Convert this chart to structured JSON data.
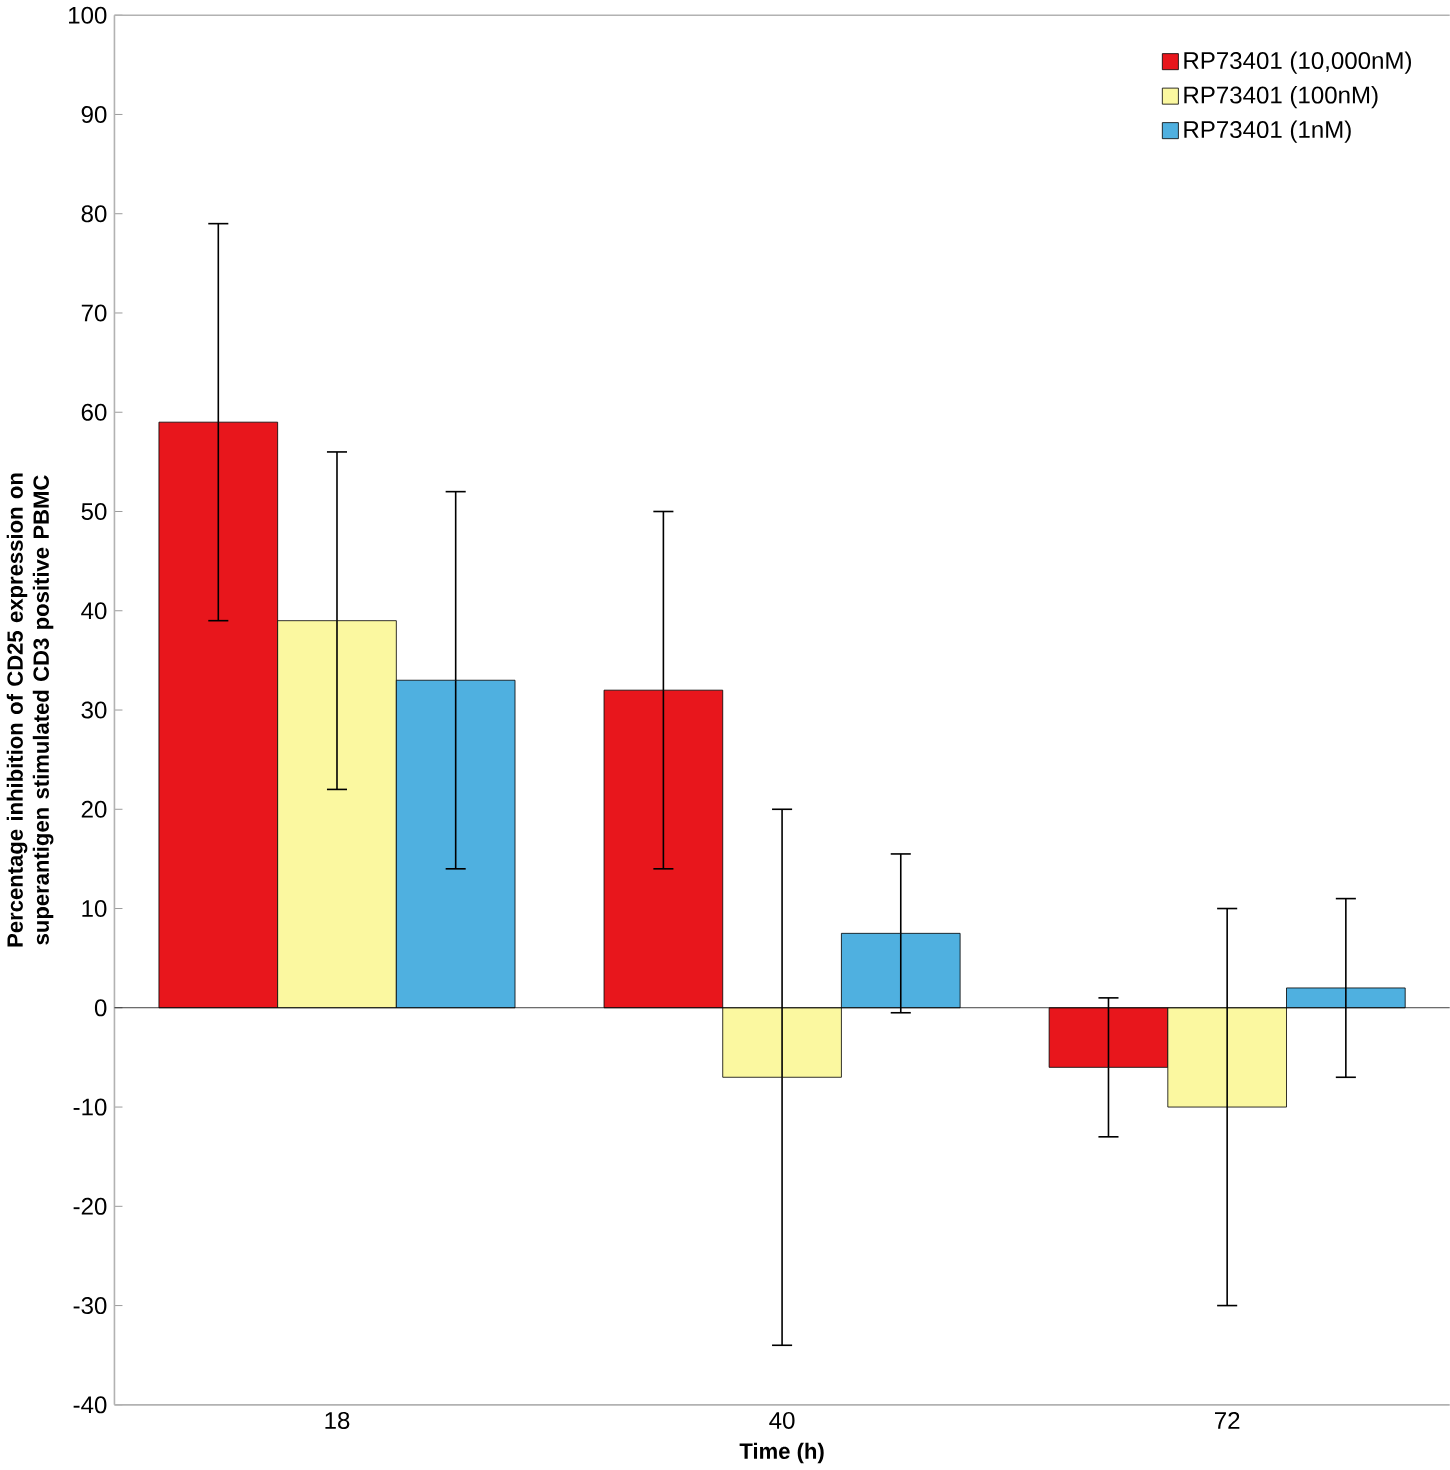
{
  "chart_data": {
    "type": "bar",
    "xlabel": "Time (h)",
    "ylabel": "Percentage inhibition of CD25 expression on superantigen stimulated CD3 positive PBMC",
    "categories": [
      "18",
      "40",
      "72"
    ],
    "series": [
      {
        "name": "RP73401 (10,000nM)",
        "color": "#e8161c",
        "values": [
          59,
          32,
          -6
        ],
        "errors": [
          20,
          18,
          7
        ]
      },
      {
        "name": "RP73401 (100nM)",
        "color": "#fbf8a0",
        "values": [
          39,
          -7,
          -10
        ],
        "errors": [
          17,
          27,
          20
        ]
      },
      {
        "name": "RP73401 (1nM)",
        "color": "#4fb0e0",
        "values": [
          33,
          7.5,
          2
        ],
        "errors": [
          19,
          8,
          9
        ]
      }
    ],
    "ylim": [
      -40,
      100
    ],
    "yticks": [
      -40,
      -30,
      -20,
      -10,
      0,
      10,
      20,
      30,
      40,
      50,
      60,
      70,
      80,
      90,
      100
    ],
    "legend": "top right",
    "marker": "square"
  }
}
